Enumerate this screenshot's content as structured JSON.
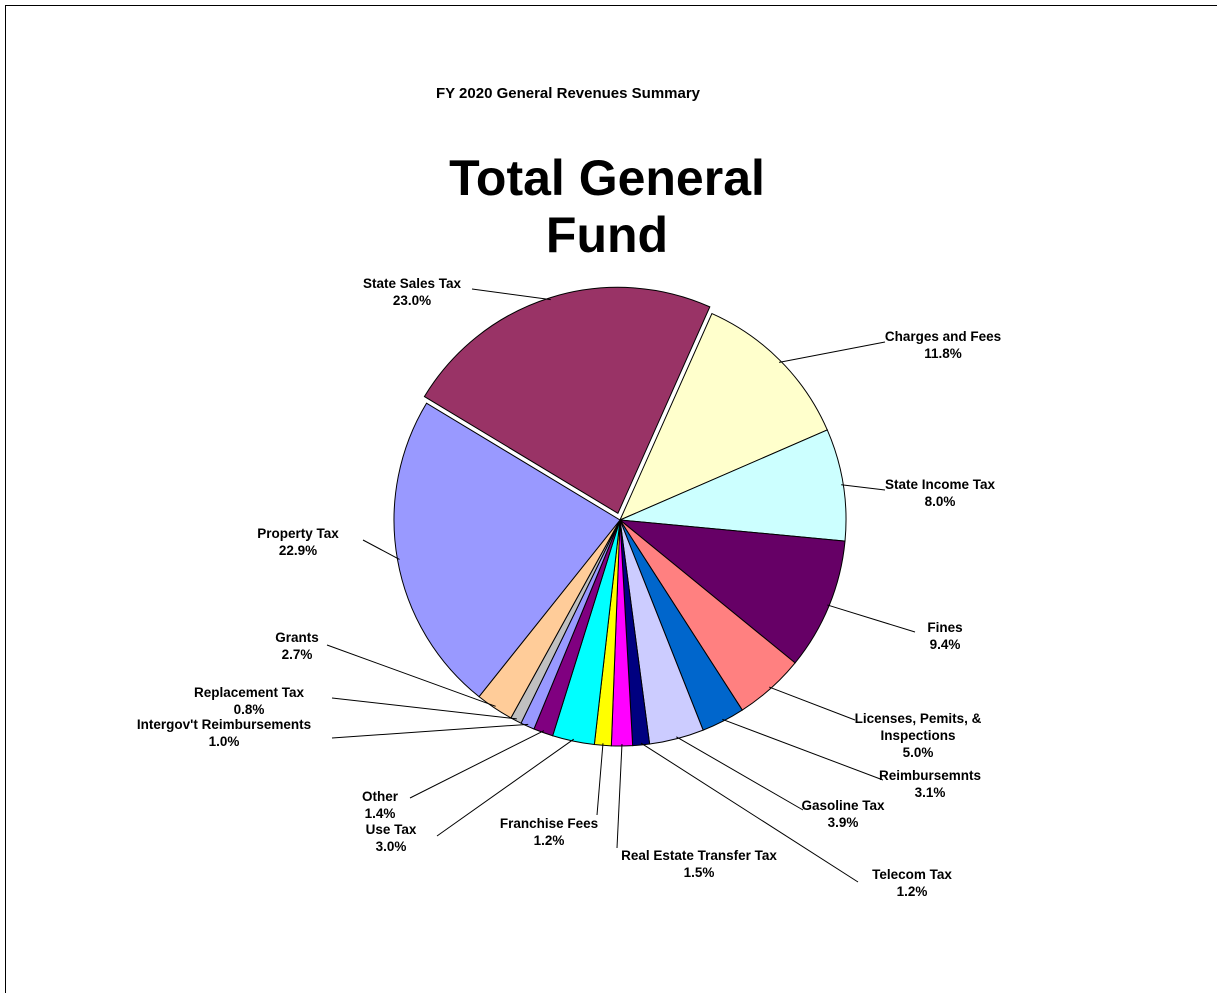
{
  "chart_data": {
    "type": "pie",
    "suptitle": "FY 2020 General Revenues Summary",
    "title": "Total General Fund",
    "categories": [
      "Charges and Fees",
      "State Income Tax",
      "Fines",
      "Licenses, Pemits, & Inspections",
      "Reimbursemnts",
      "Gasoline Tax",
      "Telecom Tax",
      "Real Estate Transfer Tax",
      "Franchise Fees",
      "Use Tax",
      "Other",
      "Intergov't Reimbursements",
      "Replacement Tax",
      "Grants",
      "Property Tax",
      "State Sales Tax"
    ],
    "values": [
      11.8,
      8.0,
      9.4,
      5.0,
      3.1,
      3.9,
      1.2,
      1.5,
      1.2,
      3.0,
      1.4,
      1.0,
      0.8,
      2.7,
      22.9,
      23.0
    ],
    "value_labels": [
      "11.8%",
      "8.0%",
      "9.4%",
      "5.0%",
      "3.1%",
      "3.9%",
      "1.2%",
      "1.5%",
      "1.2%",
      "3.0%",
      "1.4%",
      "1.0%",
      "0.8%",
      "2.7%",
      "22.9%",
      "23.0%"
    ],
    "colors": [
      "#ffffcc",
      "#ccffff",
      "#660066",
      "#ff8080",
      "#0066cc",
      "#ccccff",
      "#000080",
      "#ff00ff",
      "#ffff00",
      "#00ffff",
      "#800080",
      "#9999ff",
      "#c0c0c0",
      "#ffcc99",
      "#9999ff",
      "#993366"
    ]
  }
}
